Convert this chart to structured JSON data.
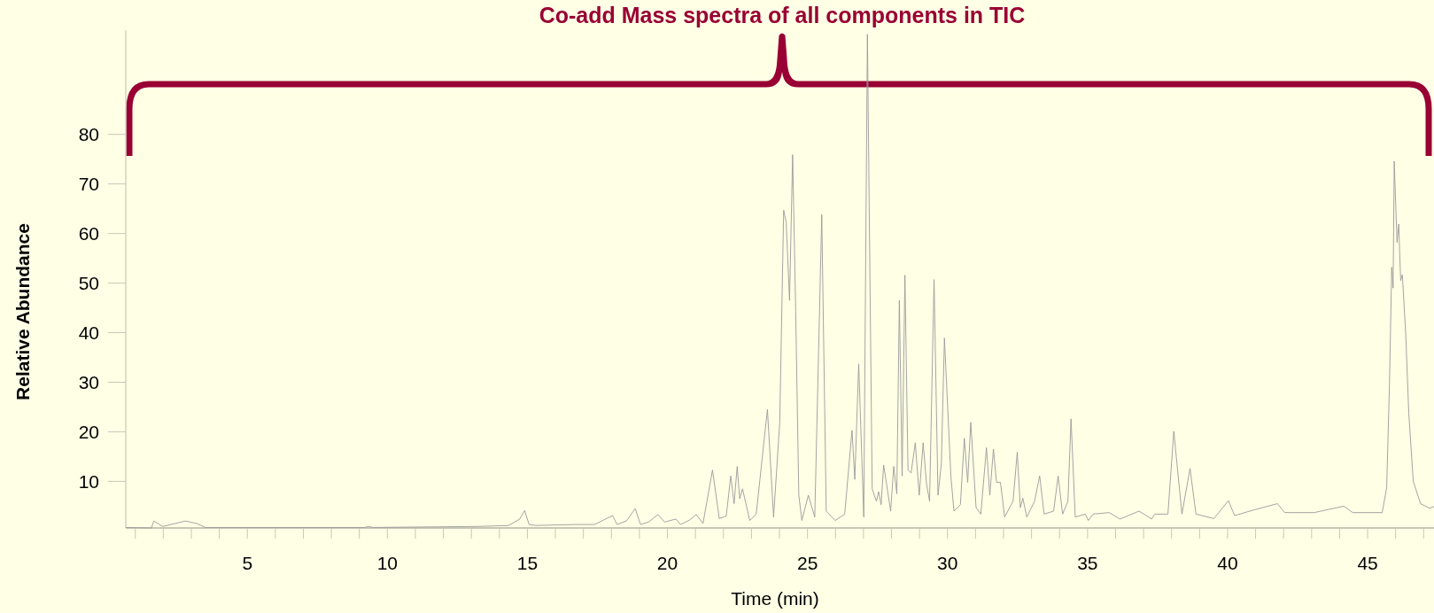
{
  "chart_data": {
    "type": "line",
    "title": "Co-add Mass spectra of all components in TIC",
    "xlabel": "Time (min)",
    "ylabel": "Relative Abundance",
    "xlim": [
      0.66,
      47.37
    ],
    "ylim": [
      0.6,
      101
    ],
    "xticks": [
      {
        "value": 1,
        "label": null
      },
      {
        "value": 2,
        "label": null
      },
      {
        "value": 3,
        "label": null
      },
      {
        "value": 4,
        "label": null
      },
      5,
      {
        "value": 6,
        "label": null
      },
      {
        "value": 7,
        "label": null
      },
      {
        "value": 8,
        "label": null
      },
      {
        "value": 9,
        "label": null
      },
      10,
      {
        "value": 11,
        "label": null
      },
      {
        "value": 12,
        "label": null
      },
      {
        "value": 13,
        "label": null
      },
      {
        "value": 14,
        "label": null
      },
      15,
      {
        "value": 16,
        "label": null
      },
      {
        "value": 17,
        "label": null
      },
      {
        "value": 18,
        "label": null
      },
      {
        "value": 19,
        "label": null
      },
      20,
      {
        "value": 21,
        "label": null
      },
      {
        "value": 22,
        "label": null
      },
      {
        "value": 23,
        "label": null
      },
      {
        "value": 24,
        "label": null
      },
      25,
      {
        "value": 26,
        "label": null
      },
      {
        "value": 27,
        "label": null
      },
      {
        "value": 28,
        "label": null
      },
      {
        "value": 29,
        "label": null
      },
      30,
      {
        "value": 31,
        "label": null
      },
      {
        "value": 32,
        "label": null
      },
      {
        "value": 33,
        "label": null
      },
      {
        "value": 34,
        "label": null
      },
      35,
      {
        "value": 36,
        "label": null
      },
      {
        "value": 37,
        "label": null
      },
      {
        "value": 38,
        "label": null
      },
      {
        "value": 39,
        "label": null
      },
      40,
      {
        "value": 41,
        "label": null
      },
      {
        "value": 42,
        "label": null
      },
      {
        "value": 43,
        "label": null
      },
      {
        "value": 44,
        "label": null
      },
      45,
      {
        "value": 46,
        "label": null
      },
      {
        "value": 47,
        "label": null
      }
    ],
    "yticks": [
      10,
      20,
      30,
      40,
      50,
      60,
      70,
      80
    ],
    "series": [
      {
        "color": "#9a9a9a",
        "x": [
          0.66,
          1.58,
          1.66,
          1.98,
          2.79,
          3.19,
          3.51,
          9.2,
          9.33,
          9.5,
          13.2,
          14.33,
          14.73,
          14.9,
          15.06,
          15.3,
          16.75,
          17.4,
          18.04,
          18.2,
          18.53,
          18.85,
          19.04,
          19.33,
          19.66,
          19.9,
          20.3,
          20.47,
          20.79,
          21.03,
          21.27,
          21.61,
          21.85,
          22.1,
          22.26,
          22.38,
          22.49,
          22.58,
          22.68,
          22.94,
          23.17,
          23.57,
          23.79,
          24.01,
          24.15,
          24.24,
          24.36,
          24.47,
          24.58,
          24.69,
          24.8,
          25.03,
          25.26,
          25.51,
          25.67,
          25.99,
          26.33,
          26.59,
          26.69,
          26.83,
          27.01,
          27.14,
          27.31,
          27.46,
          27.54,
          27.63,
          27.72,
          27.97,
          28.08,
          28.19,
          28.28,
          28.38,
          28.48,
          28.59,
          28.7,
          28.85,
          28.99,
          29.13,
          29.25,
          29.36,
          29.52,
          29.66,
          29.78,
          29.89,
          30.12,
          30.23,
          30.46,
          30.6,
          30.72,
          30.83,
          31.02,
          31.19,
          31.39,
          31.51,
          31.64,
          31.75,
          31.89,
          32.04,
          32.34,
          32.49,
          32.6,
          32.69,
          32.83,
          33.11,
          33.29,
          33.45,
          33.79,
          33.95,
          34.11,
          34.3,
          34.41,
          34.56,
          34.92,
          35.03,
          35.2,
          35.77,
          36.16,
          36.84,
          37.29,
          37.4,
          37.87,
          38.08,
          38.37,
          38.66,
          38.87,
          39.51,
          40.03,
          40.25,
          40.98,
          41.78,
          42.04,
          43.09,
          44.15,
          44.47,
          45.52,
          45.68,
          45.78,
          45.86,
          45.91,
          45.95,
          46.05,
          46.11,
          46.18,
          46.24,
          46.36,
          46.47,
          46.63,
          46.89,
          47.21,
          47.37
        ],
        "values": [
          0.7,
          0.6,
          2.0,
          0.9,
          2.0,
          1.5,
          0.7,
          0.7,
          0.9,
          0.7,
          0.9,
          1.1,
          2.4,
          4.1,
          1.3,
          1.1,
          1.3,
          1.3,
          3.1,
          1.3,
          2.0,
          4.5,
          1.3,
          1.8,
          3.3,
          1.8,
          2.4,
          1.3,
          2.2,
          3.3,
          1.5,
          12.3,
          2.5,
          3.0,
          11.1,
          5.5,
          13.0,
          6.5,
          8.5,
          2.1,
          3.4,
          24.5,
          2.8,
          21.9,
          64.7,
          62.2,
          46.5,
          75.9,
          44.3,
          7.2,
          2.1,
          7.2,
          2.8,
          63.8,
          4.0,
          2.1,
          3.4,
          20.3,
          10.4,
          33.7,
          2.8,
          100.2,
          8.5,
          6.0,
          7.9,
          5.3,
          13.3,
          4.0,
          13.0,
          7.5,
          46.5,
          11.1,
          51.6,
          12.3,
          11.7,
          17.8,
          7.2,
          17.8,
          9.5,
          6.0,
          50.7,
          7.2,
          13.6,
          38.9,
          11.1,
          4.0,
          5.3,
          18.7,
          9.8,
          21.9,
          4.7,
          3.4,
          16.8,
          7.2,
          16.5,
          9.8,
          9.8,
          2.8,
          6.0,
          15.9,
          4.7,
          6.6,
          2.8,
          6.0,
          11.1,
          3.4,
          4.0,
          11.1,
          3.4,
          6.0,
          22.6,
          2.8,
          3.4,
          2.1,
          3.4,
          3.7,
          2.4,
          4.0,
          2.4,
          3.4,
          3.4,
          20.1,
          3.4,
          12.6,
          3.4,
          2.5,
          6.1,
          3.1,
          4.3,
          5.5,
          3.7,
          3.7,
          5.0,
          3.7,
          3.7,
          8.7,
          29.6,
          53.2,
          49.0,
          74.6,
          58.2,
          61.9,
          50.5,
          51.7,
          39.8,
          23.7,
          10.0,
          5.5,
          4.6,
          4.9
        ]
      }
    ]
  }
}
